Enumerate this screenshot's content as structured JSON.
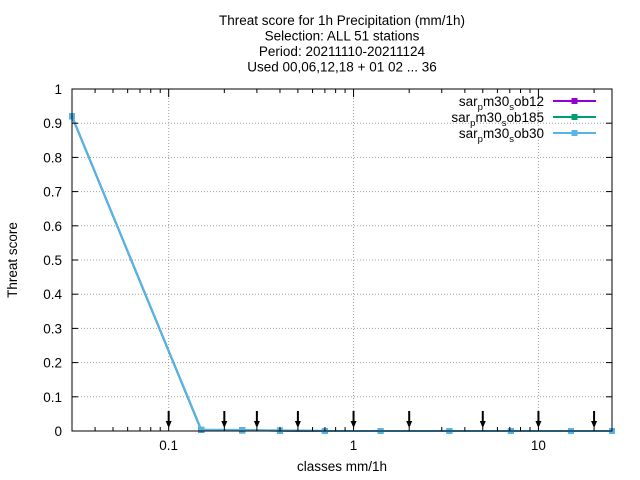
{
  "chart_data": {
    "type": "line",
    "title_lines": [
      "Threat score  for 1h Precipitation (mm/1h)",
      "Selection: ALL     51 stations",
      "Period: 20211110-20211124",
      "Used 00,06,12,18 + 01 02 ... 36"
    ],
    "xlabel": "classes mm/1h",
    "ylabel": "Threat score",
    "x_scale": "log",
    "xlim": [
      0.03,
      25
    ],
    "ylim": [
      0,
      1
    ],
    "x_ticks": [
      {
        "value": 0.1,
        "label": "0.1"
      },
      {
        "value": 1,
        "label": "1"
      },
      {
        "value": 10,
        "label": "10"
      }
    ],
    "y_ticks": [
      {
        "value": 0,
        "label": "0"
      },
      {
        "value": 0.1,
        "label": "0.1"
      },
      {
        "value": 0.2,
        "label": "0.2"
      },
      {
        "value": 0.3,
        "label": "0.3"
      },
      {
        "value": 0.4,
        "label": "0.4"
      },
      {
        "value": 0.5,
        "label": "0.5"
      },
      {
        "value": 0.6,
        "label": "0.6"
      },
      {
        "value": 0.7,
        "label": "0.7"
      },
      {
        "value": 0.8,
        "label": "0.8"
      },
      {
        "value": 0.9,
        "label": "0.9"
      },
      {
        "value": 1,
        "label": "1"
      }
    ],
    "grid": true,
    "legend_position": "top-right",
    "x": [
      0.03,
      0.15,
      0.25,
      0.4,
      0.7,
      1.4,
      3.3,
      7.1,
      15,
      25
    ],
    "series": [
      {
        "name_parts": [
          [
            "sar",
            false
          ],
          [
            "p",
            true
          ],
          [
            "m30",
            false
          ],
          [
            "s",
            true
          ],
          [
            "ob12",
            false
          ]
        ],
        "color": "#9400d3",
        "values": [
          0.92,
          0.003,
          0.002,
          0.001,
          0.0,
          0.0,
          0.0,
          0.0,
          0.0,
          0.0
        ]
      },
      {
        "name_parts": [
          [
            "sar",
            false
          ],
          [
            "p",
            true
          ],
          [
            "m30",
            false
          ],
          [
            "s",
            true
          ],
          [
            "ob185",
            false
          ]
        ],
        "color": "#009e73",
        "values": [
          0.92,
          0.003,
          0.002,
          0.001,
          0.0,
          0.0,
          0.0,
          0.0,
          0.0,
          0.0
        ]
      },
      {
        "name_parts": [
          [
            "sar",
            false
          ],
          [
            "p",
            true
          ],
          [
            "m30",
            false
          ],
          [
            "s",
            true
          ],
          [
            "ob30",
            false
          ]
        ],
        "color": "#56b4e9",
        "values": [
          0.92,
          0.004,
          0.003,
          0.002,
          0.0,
          0.0,
          0.0,
          0.0,
          0.0,
          0.0
        ]
      }
    ],
    "threshold_markers_x": [
      0.1,
      0.2,
      0.3,
      0.5,
      1,
      2,
      5,
      10,
      20
    ]
  }
}
